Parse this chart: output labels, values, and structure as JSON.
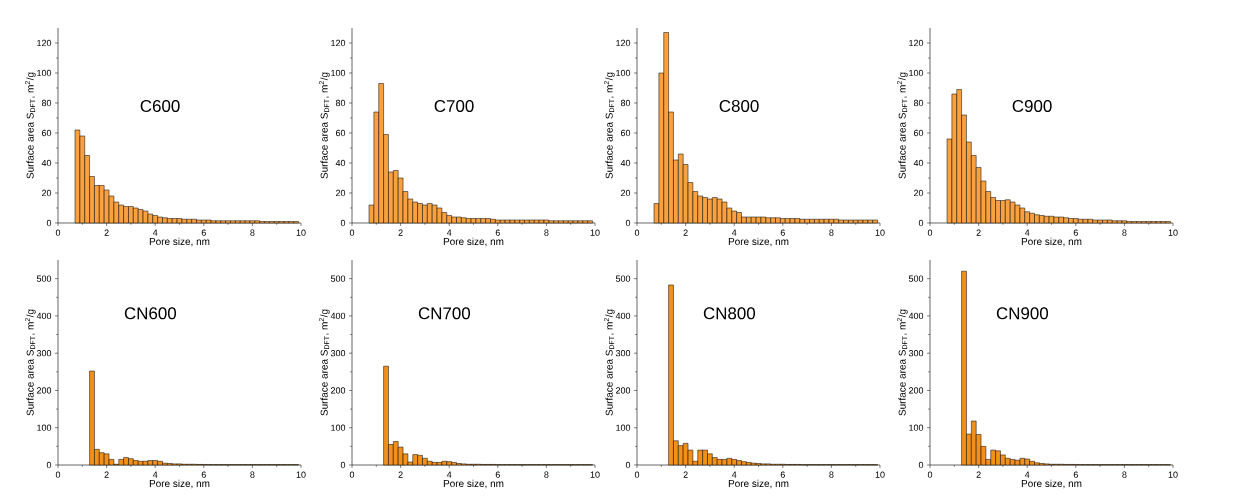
{
  "chart_data": [
    {
      "type": "histogram",
      "bins": [
        0.7,
        0.9,
        1.1,
        1.3,
        1.5,
        1.7,
        1.9,
        2.1,
        2.3,
        2.5,
        2.7,
        2.9,
        3.1,
        3.3,
        3.5,
        3.7,
        3.9,
        4.1,
        4.3,
        4.5,
        4.7,
        4.9,
        5.1,
        5.3,
        5.5,
        5.7,
        5.9,
        6.1,
        6.3,
        6.5,
        6.7,
        6.9,
        7.1,
        7.3,
        7.5,
        7.7,
        7.9,
        8.1,
        8.3,
        8.5,
        8.7,
        8.9,
        9.1,
        9.3,
        9.5,
        9.7,
        9.9
      ],
      "values": [
        62,
        58,
        45,
        31,
        25,
        25,
        22,
        18,
        14,
        12,
        11,
        11,
        10,
        9,
        8,
        6,
        5,
        4,
        3.5,
        3,
        3,
        3,
        2.5,
        2.5,
        2.5,
        2,
        2,
        2,
        1.5,
        1.5,
        1.5,
        1.5,
        1.5,
        1.5,
        1.5,
        1.5,
        1.5,
        1.5,
        1,
        1,
        1,
        1,
        1,
        1,
        1,
        1
      ],
      "color": "#f9a03f",
      "xlabel": "Pore size, nm",
      "ylabel": "Surface area S$_{DFT}$, m$^{2}$/g",
      "annotations": [
        "C600"
      ],
      "xlim": [
        0,
        10
      ],
      "ylim": [
        0,
        130
      ],
      "xticks": [
        0,
        2,
        4,
        6,
        8,
        10
      ],
      "yticks": [
        0,
        20,
        40,
        60,
        80,
        100,
        120
      ],
      "grid": false
    },
    {
      "type": "histogram",
      "bins": [
        0.7,
        0.9,
        1.1,
        1.3,
        1.5,
        1.7,
        1.9,
        2.1,
        2.3,
        2.5,
        2.7,
        2.9,
        3.1,
        3.3,
        3.5,
        3.7,
        3.9,
        4.1,
        4.3,
        4.5,
        4.7,
        4.9,
        5.1,
        5.3,
        5.5,
        5.7,
        5.9,
        6.1,
        6.3,
        6.5,
        6.7,
        6.9,
        7.1,
        7.3,
        7.5,
        7.7,
        7.9,
        8.1,
        8.3,
        8.5,
        8.7,
        8.9,
        9.1,
        9.3,
        9.5,
        9.7,
        9.9
      ],
      "values": [
        12,
        74,
        93,
        59,
        34,
        35,
        30,
        21,
        16,
        14,
        13,
        12,
        13,
        12,
        10,
        7,
        5,
        4,
        4,
        3.5,
        3,
        3,
        3,
        3,
        3,
        2.5,
        2,
        2,
        2,
        2,
        2,
        2,
        2,
        2,
        2,
        2,
        2,
        1.5,
        1.5,
        1.5,
        1.5,
        1.5,
        1.5,
        1.5,
        1.5,
        1.5
      ],
      "color": "#f9a03f",
      "xlabel": "Pore size, nm",
      "ylabel": "Surface area S$_{DFT}$, m$^{2}$/g",
      "annotations": [
        "C700"
      ],
      "xlim": [
        0,
        10
      ],
      "ylim": [
        0,
        130
      ],
      "xticks": [
        0,
        2,
        4,
        6,
        8,
        10
      ],
      "yticks": [
        0,
        20,
        40,
        60,
        80,
        100,
        120
      ],
      "grid": false
    },
    {
      "type": "histogram",
      "bins": [
        0.7,
        0.9,
        1.1,
        1.3,
        1.5,
        1.7,
        1.9,
        2.1,
        2.3,
        2.5,
        2.7,
        2.9,
        3.1,
        3.3,
        3.5,
        3.7,
        3.9,
        4.1,
        4.3,
        4.5,
        4.7,
        4.9,
        5.1,
        5.3,
        5.5,
        5.7,
        5.9,
        6.1,
        6.3,
        6.5,
        6.7,
        6.9,
        7.1,
        7.3,
        7.5,
        7.7,
        7.9,
        8.1,
        8.3,
        8.5,
        8.7,
        8.9,
        9.1,
        9.3,
        9.5,
        9.7,
        9.9
      ],
      "values": [
        13,
        100,
        127,
        74,
        42,
        46,
        39,
        27,
        21,
        18,
        17,
        16,
        17,
        16,
        14,
        10,
        8,
        7,
        4,
        4,
        4,
        4,
        4,
        3.5,
        3.5,
        3.5,
        3,
        3,
        3,
        3,
        2.5,
        2.5,
        2.5,
        2.5,
        2.5,
        2.5,
        2.5,
        2.5,
        2,
        2,
        2,
        2,
        2,
        2,
        2,
        2
      ],
      "color": "#f9a03f",
      "xlabel": "Pore size, nm",
      "ylabel": "Surface area S$_{DFT}$, m$^{2}$/g",
      "annotations": [
        "C800"
      ],
      "xlim": [
        0,
        10
      ],
      "ylim": [
        0,
        130
      ],
      "xticks": [
        0,
        2,
        4,
        6,
        8,
        10
      ],
      "yticks": [
        0,
        20,
        40,
        60,
        80,
        100,
        120
      ],
      "grid": false
    },
    {
      "type": "histogram",
      "bins": [
        0.7,
        0.9,
        1.1,
        1.3,
        1.5,
        1.7,
        1.9,
        2.1,
        2.3,
        2.5,
        2.7,
        2.9,
        3.1,
        3.3,
        3.5,
        3.7,
        3.9,
        4.1,
        4.3,
        4.5,
        4.7,
        4.9,
        5.1,
        5.3,
        5.5,
        5.7,
        5.9,
        6.1,
        6.3,
        6.5,
        6.7,
        6.9,
        7.1,
        7.3,
        7.5,
        7.7,
        7.9,
        8.1,
        8.3,
        8.5,
        8.7,
        8.9,
        9.1,
        9.3,
        9.5,
        9.7,
        9.9
      ],
      "values": [
        56,
        86,
        89,
        72,
        54,
        45,
        37,
        28,
        21,
        17,
        15,
        15,
        15.5,
        14,
        12,
        10,
        7.5,
        6.5,
        5.5,
        5,
        4.5,
        4.5,
        4,
        4,
        3.5,
        3,
        3,
        2.5,
        2.5,
        2.5,
        2,
        2,
        2,
        2,
        1.5,
        1.5,
        1.5,
        1,
        1,
        1,
        1,
        1,
        1,
        1,
        1,
        1
      ],
      "color": "#f9a03f",
      "xlabel": "Pore size, nm",
      "ylabel": "Surface area S$_{DFT}$, m$^{2}$/g",
      "annotations": [
        "C900"
      ],
      "xlim": [
        0,
        10
      ],
      "ylim": [
        0,
        130
      ],
      "xticks": [
        0,
        2,
        4,
        6,
        8,
        10
      ],
      "yticks": [
        0,
        20,
        40,
        60,
        80,
        100,
        120
      ],
      "grid": false
    },
    {
      "type": "histogram",
      "bins": [
        1.3,
        1.5,
        1.7,
        1.9,
        2.1,
        2.3,
        2.5,
        2.7,
        2.9,
        3.1,
        3.3,
        3.5,
        3.7,
        3.9,
        4.1,
        4.3,
        4.5,
        4.7,
        4.9,
        5.1,
        5.3,
        5.5,
        5.7,
        5.9,
        6.1,
        6.3,
        6.5,
        6.7,
        6.9,
        7.1,
        7.3,
        7.5,
        7.7,
        7.9,
        8.1,
        8.3,
        8.5,
        8.7,
        8.9,
        9.1,
        9.3,
        9.5,
        9.7,
        9.9
      ],
      "values": [
        252,
        42,
        33,
        30,
        15,
        2,
        15,
        20,
        17,
        12,
        10,
        10,
        12,
        12,
        10,
        5,
        4,
        3,
        3,
        2,
        2,
        2,
        1.5,
        1.5,
        1,
        1,
        1,
        1,
        1,
        1,
        1,
        1,
        1,
        1,
        1,
        1,
        1,
        1,
        1,
        1,
        1,
        1,
        1
      ],
      "color": "#f39019",
      "xlabel": "Pore size, nm",
      "ylabel": "Surface area S$_{DFT}$, m$^{2}$/g",
      "annotations": [
        "CN600"
      ],
      "xlim": [
        0,
        10
      ],
      "ylim": [
        0,
        550
      ],
      "xticks": [
        0,
        2,
        4,
        6,
        8,
        10
      ],
      "yticks": [
        0,
        100,
        200,
        300,
        400,
        500
      ],
      "grid": false
    },
    {
      "type": "histogram",
      "bins": [
        1.3,
        1.5,
        1.7,
        1.9,
        2.1,
        2.3,
        2.5,
        2.7,
        2.9,
        3.1,
        3.3,
        3.5,
        3.7,
        3.9,
        4.1,
        4.3,
        4.5,
        4.7,
        4.9,
        5.1,
        5.3,
        5.5,
        5.7,
        5.9,
        6.1,
        6.3,
        6.5,
        6.7,
        6.9,
        7.1,
        7.3,
        7.5,
        7.7,
        7.9,
        8.1,
        8.3,
        8.5,
        8.7,
        8.9,
        9.1,
        9.3,
        9.5,
        9.7,
        9.9
      ],
      "values": [
        265,
        55,
        63,
        48,
        30,
        8,
        28,
        26,
        18,
        10,
        7,
        7,
        10,
        9,
        7,
        4,
        3,
        2,
        2,
        2,
        1.5,
        1.5,
        1.5,
        1,
        1,
        1,
        1,
        1,
        1,
        1,
        1,
        1,
        1,
        1,
        1,
        1,
        1,
        1,
        1,
        1,
        1,
        1,
        1
      ],
      "color": "#f39019",
      "xlabel": "Pore size, nm",
      "ylabel": "Surface area S$_{DFT}$, m$^{2}$/g",
      "annotations": [
        "CN700"
      ],
      "xlim": [
        0,
        10
      ],
      "ylim": [
        0,
        550
      ],
      "xticks": [
        0,
        2,
        4,
        6,
        8,
        10
      ],
      "yticks": [
        0,
        100,
        200,
        300,
        400,
        500
      ],
      "grid": false
    },
    {
      "type": "histogram",
      "bins": [
        1.3,
        1.5,
        1.7,
        1.9,
        2.1,
        2.3,
        2.5,
        2.7,
        2.9,
        3.1,
        3.3,
        3.5,
        3.7,
        3.9,
        4.1,
        4.3,
        4.5,
        4.7,
        4.9,
        5.1,
        5.3,
        5.5,
        5.7,
        5.9,
        6.1,
        6.3,
        6.5,
        6.7,
        6.9,
        7.1,
        7.3,
        7.5,
        7.7,
        7.9,
        8.1,
        8.3,
        8.5,
        8.7,
        8.9,
        9.1,
        9.3,
        9.5,
        9.7,
        9.9
      ],
      "values": [
        483,
        65,
        52,
        58,
        40,
        10,
        40,
        40,
        30,
        20,
        15,
        15,
        18,
        15,
        12,
        9,
        7,
        5,
        4,
        3,
        3,
        2,
        2,
        2,
        1.5,
        1.5,
        1.5,
        1,
        1,
        1,
        1,
        1,
        1,
        1,
        1,
        1,
        1,
        1,
        1,
        1,
        1,
        1,
        1
      ],
      "color": "#f39019",
      "xlabel": "Pore size, nm",
      "ylabel": "Surface area S$_{DFT}$, m$^{2}$/g",
      "annotations": [
        "CN800"
      ],
      "xlim": [
        0,
        10
      ],
      "ylim": [
        0,
        550
      ],
      "xticks": [
        0,
        2,
        4,
        6,
        8,
        10
      ],
      "yticks": [
        0,
        100,
        200,
        300,
        400,
        500
      ],
      "grid": false
    },
    {
      "type": "histogram",
      "bins": [
        1.3,
        1.5,
        1.7,
        1.9,
        2.1,
        2.3,
        2.5,
        2.7,
        2.9,
        3.1,
        3.3,
        3.5,
        3.7,
        3.9,
        4.1,
        4.3,
        4.5,
        4.7,
        4.9,
        5.1,
        5.3,
        5.5,
        5.7,
        5.9,
        6.1,
        6.3,
        6.5,
        6.7,
        6.9,
        7.1,
        7.3,
        7.5,
        7.7,
        7.9,
        8.1,
        8.3,
        8.5,
        8.7,
        8.9,
        9.1,
        9.3,
        9.5,
        9.7,
        9.9
      ],
      "values": [
        520,
        83,
        118,
        82,
        50,
        15,
        40,
        38,
        27,
        18,
        15,
        13,
        18,
        16,
        10,
        6,
        4,
        3,
        2,
        2,
        2,
        1.5,
        1.5,
        1.5,
        1,
        1,
        1,
        1,
        1,
        1,
        1,
        1,
        1,
        1,
        1,
        1,
        1,
        1,
        1,
        1,
        1,
        1,
        1
      ],
      "color": "#f39019",
      "xlabel": "Pore size, nm",
      "ylabel": "Surface area S$_{DFT}$, m$^{2}$/g",
      "annotations": [
        "CN900"
      ],
      "xlim": [
        0,
        10
      ],
      "ylim": [
        0,
        550
      ],
      "xticks": [
        0,
        2,
        4,
        6,
        8,
        10
      ],
      "yticks": [
        0,
        100,
        200,
        300,
        400,
        500
      ],
      "grid": false
    }
  ]
}
